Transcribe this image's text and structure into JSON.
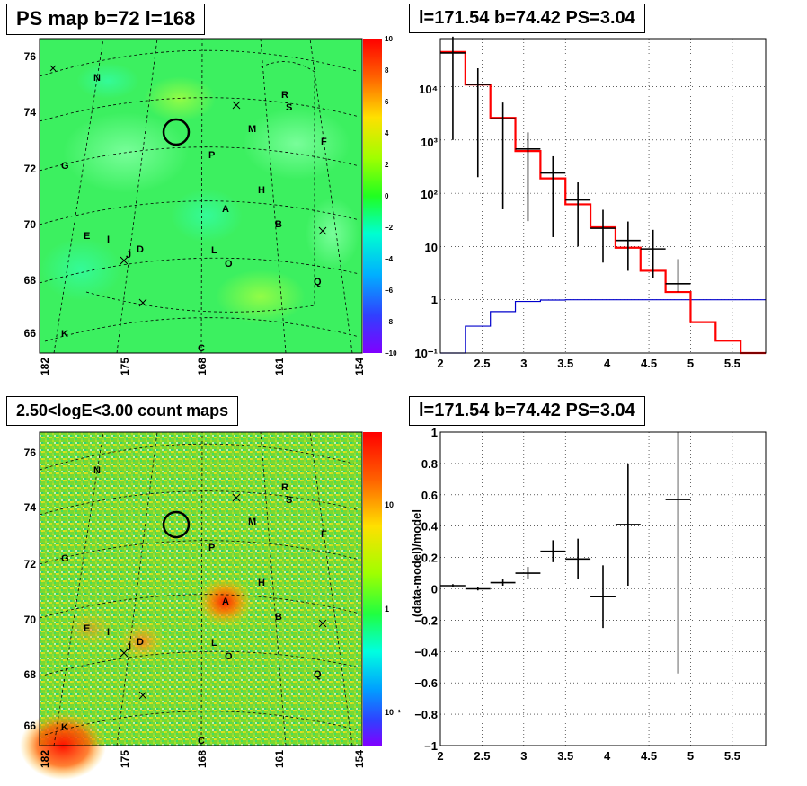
{
  "colors": {
    "frame": "#000000",
    "model_line": "#ff0000",
    "background_line": "#0000cc",
    "marker": "#000000",
    "grid": "#000000"
  },
  "panels": {
    "tl": {
      "title": "PS map b=72 l=168",
      "y_ticks": [
        "76",
        "74",
        "72",
        "70",
        "68",
        "66"
      ],
      "x_ticks": [
        "182",
        "175",
        "168",
        "161",
        "154"
      ],
      "colorbar_ticks": [
        "10",
        "8",
        "6",
        "4",
        "2",
        "0",
        "−2",
        "−4",
        "−6",
        "−8",
        "−10"
      ],
      "source_labels": [
        "N",
        "R",
        "S",
        "M",
        "F",
        "G",
        "P",
        "H",
        "A",
        "B",
        "E",
        "I",
        "D",
        "J",
        "L",
        "O",
        "Q",
        "K",
        "C"
      ]
    },
    "tr": {
      "title": "l=171.54 b=74.42 PS=3.04"
    },
    "bl": {
      "title": "2.50<logE<3.00 count maps",
      "colorbar_ticks": [
        "10",
        "1",
        "10⁻¹"
      ]
    },
    "br": {
      "title": "l=171.54 b=74.42 PS=3.04",
      "ylabel": "(data-model)/model"
    }
  },
  "chart_data": [
    {
      "type": "heatmap",
      "title": "PS map b=72 l=168",
      "xlabel": "",
      "ylabel": "",
      "x_ticks": [
        182,
        175,
        168,
        161,
        154
      ],
      "y_ticks": [
        76,
        74,
        72,
        70,
        68,
        66
      ],
      "colorbar": {
        "min": -10,
        "max": 10,
        "ticks": [
          10,
          8,
          6,
          4,
          2,
          0,
          -2,
          -4,
          -6,
          -8,
          -10
        ]
      },
      "markers": {
        "circle": "near l=171.5, b=73.4",
        "crosses": "several"
      },
      "source_labels": [
        "N",
        "R",
        "S",
        "M",
        "F",
        "G",
        "P",
        "H",
        "A",
        "B",
        "E",
        "I",
        "D",
        "J",
        "L",
        "O",
        "Q",
        "K",
        "C"
      ]
    },
    {
      "type": "line",
      "title": "l=171.54 b=74.42 PS=3.04",
      "xlim": [
        2,
        5.9
      ],
      "y_scale": "log",
      "ylim": [
        0.1,
        80000
      ],
      "x_ticks": [
        2,
        2.5,
        3,
        3.5,
        4,
        4.5,
        5,
        5.5
      ],
      "y_tick_labels": [
        "10⁻¹",
        "1",
        "10",
        "10²",
        "10³",
        "10⁴"
      ],
      "grid": true,
      "series": [
        {
          "style": "data_points",
          "x": [
            2.15,
            2.45,
            2.75,
            3.05,
            3.35,
            3.65,
            3.95,
            4.25,
            4.55,
            4.85
          ],
          "y": [
            43000,
            11000,
            2500,
            680,
            240,
            75,
            22,
            13,
            9,
            2
          ],
          "yerr_low": [
            42000,
            10800,
            2450,
            650,
            225,
            65,
            17,
            9.5,
            6.4,
            0.6
          ],
          "yerr_high": [
            44000,
            11200,
            2550,
            710,
            255,
            85,
            27,
            16.5,
            11.6,
            3.8
          ]
        },
        {
          "style": "step",
          "edges": [
            2,
            2.3,
            2.6,
            2.9,
            3.2,
            3.5,
            3.8,
            4.1,
            4.4,
            4.7,
            5.0,
            5.3,
            5.6,
            5.9
          ],
          "values": [
            45000,
            11000,
            2600,
            620,
            190,
            62,
            23,
            9.5,
            3.5,
            1.4,
            0.38,
            0.17,
            0.1
          ]
        },
        {
          "style": "step",
          "edges": [
            2,
            2.3,
            2.6,
            2.9,
            3.2,
            3.5,
            3.8,
            4.1,
            4.4,
            4.7,
            5.0,
            5.3,
            5.6,
            5.9
          ],
          "values": [
            0.1,
            0.32,
            0.6,
            0.93,
            0.99,
            1,
            1,
            1,
            1,
            1,
            1,
            1,
            1
          ]
        }
      ]
    },
    {
      "type": "heatmap",
      "title": "2.50<logE<3.00 count maps",
      "x_ticks": [
        182,
        175,
        168,
        161,
        154
      ],
      "y_ticks": [
        76,
        74,
        72,
        70,
        68,
        66
      ],
      "colorbar": {
        "scale": "log",
        "ticks": [
          "10",
          "1",
          "10⁻¹"
        ]
      },
      "hotspots": [
        "A near l=165, b=70.5",
        "D near l=175.5, b=69",
        "K near l=181, b=65.8"
      ],
      "source_labels": [
        "N",
        "R",
        "S",
        "M",
        "F",
        "G",
        "P",
        "H",
        "A",
        "B",
        "E",
        "I",
        "D",
        "J",
        "L",
        "O",
        "Q",
        "K",
        "C"
      ]
    },
    {
      "type": "scatter",
      "title": "l=171.54 b=74.42 PS=3.04",
      "ylabel": "(data-model)/model",
      "xlim": [
        2,
        5.9
      ],
      "ylim": [
        -1,
        1
      ],
      "x_ticks": [
        2,
        2.5,
        3,
        3.5,
        4,
        4.5,
        5,
        5.5
      ],
      "y_ticks": [
        -1,
        -0.8,
        -0.6,
        -0.4,
        -0.2,
        0,
        0.2,
        0.4,
        0.6,
        0.8,
        1
      ],
      "grid": true,
      "points": [
        {
          "x": 2.15,
          "y": 0.02,
          "xerr": 0.15,
          "yerr": 0.01
        },
        {
          "x": 2.45,
          "y": 0.0,
          "xerr": 0.15,
          "yerr": 0.01
        },
        {
          "x": 2.75,
          "y": 0.04,
          "xerr": 0.15,
          "yerr": 0.02
        },
        {
          "x": 3.05,
          "y": 0.1,
          "xerr": 0.15,
          "yerr": 0.04
        },
        {
          "x": 3.35,
          "y": 0.24,
          "xerr": 0.15,
          "yerr": 0.07
        },
        {
          "x": 3.65,
          "y": 0.19,
          "xerr": 0.15,
          "yerr": 0.13
        },
        {
          "x": 3.95,
          "y": -0.05,
          "xerr": 0.15,
          "yerr": 0.2
        },
        {
          "x": 4.25,
          "y": 0.41,
          "xerr": 0.15,
          "yerr": 0.39
        },
        {
          "x": 4.85,
          "y": 0.57,
          "xerr": 0.15,
          "yerr": 1.11
        }
      ]
    }
  ]
}
